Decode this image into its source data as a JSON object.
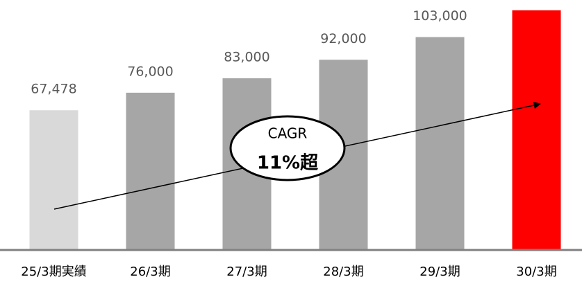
{
  "chart_data": {
    "type": "bar",
    "categories": [
      "25/3期実績",
      "26/3期",
      "27/3期",
      "28/3期",
      "29/3期",
      "30/3期"
    ],
    "values": [
      67478,
      76000,
      83000,
      92000,
      103000,
      116000
    ],
    "value_labels": [
      "67,478",
      "76,000",
      "83,000",
      "92,000",
      "103,000",
      null
    ],
    "colors": [
      "#d9d9d9",
      "#a6a6a6",
      "#a6a6a6",
      "#a6a6a6",
      "#a6a6a6",
      "#ff0000"
    ],
    "ylim": [
      0,
      121000
    ],
    "annotation": {
      "line1": "CAGR",
      "line2": "11%超"
    }
  }
}
